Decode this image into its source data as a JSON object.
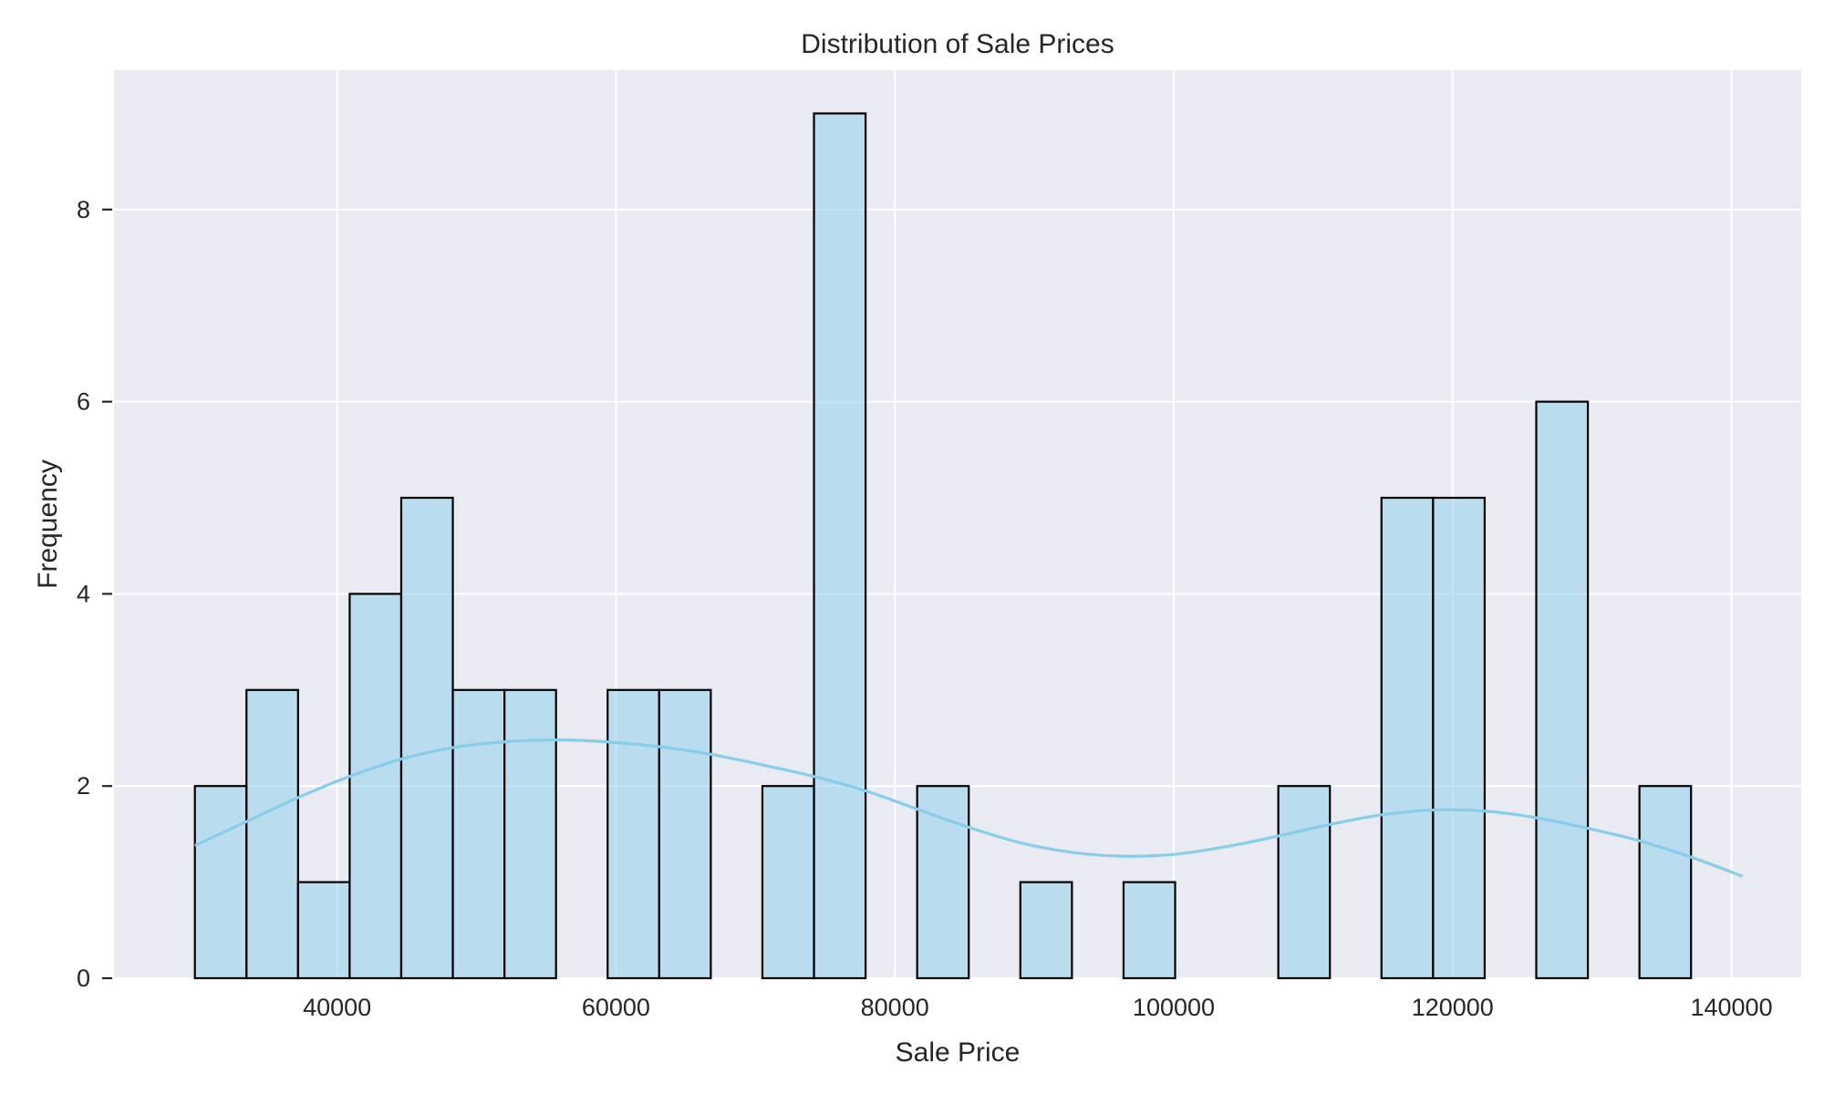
{
  "chart_data": {
    "type": "bar",
    "title": "Distribution of Sale Prices",
    "xlabel": "Sale Price",
    "ylabel": "Frequency",
    "xlim": [
      24000,
      145000
    ],
    "ylim": [
      0,
      9.45
    ],
    "x_ticks": [
      40000,
      60000,
      80000,
      100000,
      120000,
      140000
    ],
    "y_ticks": [
      0,
      2,
      4,
      6,
      8
    ],
    "grid": true,
    "bin_start": 29800,
    "bin_width": 3700,
    "counts": [
      2,
      3,
      1,
      4,
      5,
      3,
      3,
      0,
      3,
      3,
      0,
      2,
      9,
      0,
      2,
      0,
      1,
      0,
      1,
      0,
      0,
      2,
      0,
      5,
      5,
      0,
      6,
      0,
      2
    ],
    "kde_curve": {
      "x": [
        29800,
        33500,
        37200,
        40900,
        44600,
        48300,
        52000,
        55700,
        59400,
        63100,
        66800,
        70500,
        74200,
        77900,
        81600,
        85300,
        89000,
        92700,
        96400,
        100100,
        103800,
        107500,
        111200,
        114900,
        118600,
        122300,
        126000,
        129700,
        133400,
        137100,
        140800
      ],
      "y": [
        1.38,
        1.63,
        1.88,
        2.1,
        2.28,
        2.4,
        2.46,
        2.48,
        2.46,
        2.41,
        2.33,
        2.22,
        2.1,
        1.95,
        1.76,
        1.57,
        1.41,
        1.31,
        1.27,
        1.29,
        1.37,
        1.48,
        1.6,
        1.7,
        1.75,
        1.74,
        1.67,
        1.56,
        1.43,
        1.26,
        1.06
      ]
    },
    "colors": {
      "plot_background": "#EAEAF2",
      "bar_fill": "#87CEEB",
      "bar_edge": "#000000",
      "kde_line": "#87CEEB",
      "grid": "#FFFFFF"
    }
  }
}
